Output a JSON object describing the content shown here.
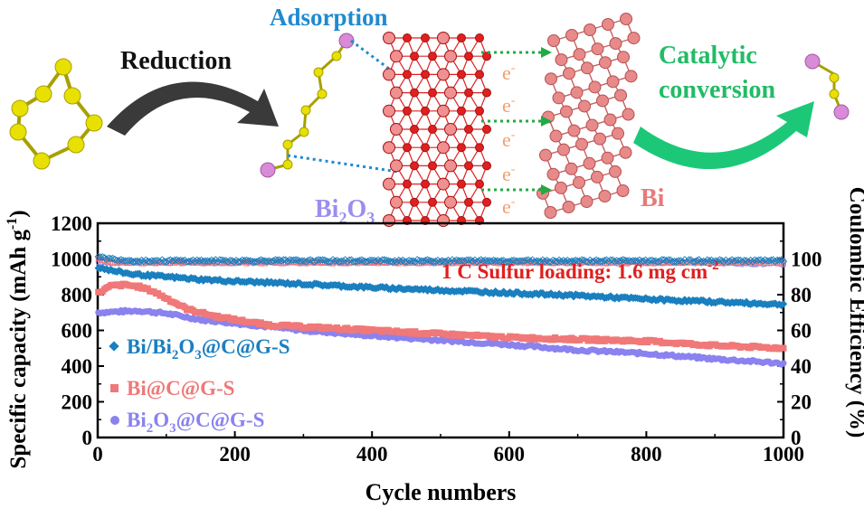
{
  "schematic": {
    "reduction": "Reduction",
    "adsorption": "Adsorption",
    "catalytic_1": "Catalytic",
    "catalytic_2": "conversion",
    "bi2o3_label": {
      "base": "Bi",
      "sub1": "2",
      "mid": "O",
      "sub2": "3"
    },
    "bi_label": "Bi",
    "electron": "e",
    "electron_sup": "-",
    "colors": {
      "sulfur": "#e8e000",
      "sulfur_dark": "#a8a000",
      "lithium": "#d98ad9",
      "bi2o3_red": "#e02020",
      "bi_pink": "#e88a8a",
      "arrow_grey": "#3a3a3a",
      "arrow_green": "#1cc878",
      "adsorption_blue": "#1f8ad1",
      "electron_orange": "#f0a070",
      "bi2o3_text": "#9a8ef0",
      "bi_text": "#e87a7a",
      "catalytic_green": "#22bb66"
    }
  },
  "chart_data": {
    "type": "line",
    "xlabel": "Cycle numbers",
    "ylabel": {
      "main": "Specific capacity (mAh g",
      "sup": "-1",
      "end": ")"
    },
    "y2label": "Coulombic Efficiency (%)",
    "xlim": [
      0,
      1000
    ],
    "ylim": [
      0,
      1200
    ],
    "y2lim": [
      0,
      120
    ],
    "xticks": [
      0,
      200,
      400,
      600,
      800,
      1000
    ],
    "yticks": [
      0,
      200,
      400,
      600,
      800,
      1000,
      1200
    ],
    "y2ticks": [
      0,
      20,
      40,
      60,
      80,
      100
    ],
    "annotation": {
      "main": "1 C  Sulfur loading: 1.6 mg cm",
      "sup": "-2"
    },
    "series": [
      {
        "name": "Bi/Bi2O3@C@G-S",
        "legend": {
          "a": "Bi/Bi",
          "sub": "2",
          "b": "O",
          "sub2": "3",
          "c": "@C@G-S"
        },
        "color": "#1a7fbf",
        "marker": "diamond",
        "x": [
          1,
          20,
          50,
          100,
          150,
          200,
          300,
          400,
          500,
          600,
          700,
          800,
          900,
          1000
        ],
        "y": [
          955,
          935,
          915,
          900,
          885,
          875,
          860,
          840,
          825,
          810,
          795,
          775,
          760,
          745
        ],
        "ce": [
          101,
          100,
          99,
          99,
          99,
          99,
          99,
          99,
          99,
          99,
          99,
          99,
          99,
          99
        ]
      },
      {
        "name": "Bi@C@G-S",
        "legend": {
          "a": "Bi@C@G-S"
        },
        "color": "#f07878",
        "marker": "square",
        "x": [
          1,
          20,
          40,
          60,
          80,
          100,
          130,
          170,
          200,
          250,
          300,
          400,
          500,
          600,
          700,
          800,
          900,
          1000
        ],
        "y": [
          810,
          850,
          855,
          845,
          820,
          780,
          720,
          680,
          660,
          630,
          620,
          600,
          580,
          560,
          550,
          540,
          515,
          500
        ],
        "ce": [
          100,
          98,
          98,
          98,
          98,
          98,
          98,
          98,
          98,
          98,
          98,
          98,
          98,
          98,
          98,
          98,
          98,
          98
        ]
      },
      {
        "name": "Bi2O3@C@G-S",
        "legend": {
          "a": "Bi",
          "sub": "2",
          "b": "O",
          "sub2": "3",
          "c": "@C@G-S"
        },
        "color": "#8a82ef",
        "marker": "circle",
        "x": [
          1,
          30,
          60,
          100,
          150,
          200,
          250,
          300,
          400,
          500,
          600,
          700,
          800,
          900,
          1000
        ],
        "y": [
          700,
          705,
          710,
          695,
          660,
          640,
          620,
          600,
          570,
          545,
          520,
          490,
          470,
          440,
          415
        ],
        "ce": [
          98,
          98,
          98,
          98,
          98,
          98,
          98,
          98,
          98,
          98,
          98,
          98,
          98,
          98,
          97
        ]
      }
    ]
  }
}
